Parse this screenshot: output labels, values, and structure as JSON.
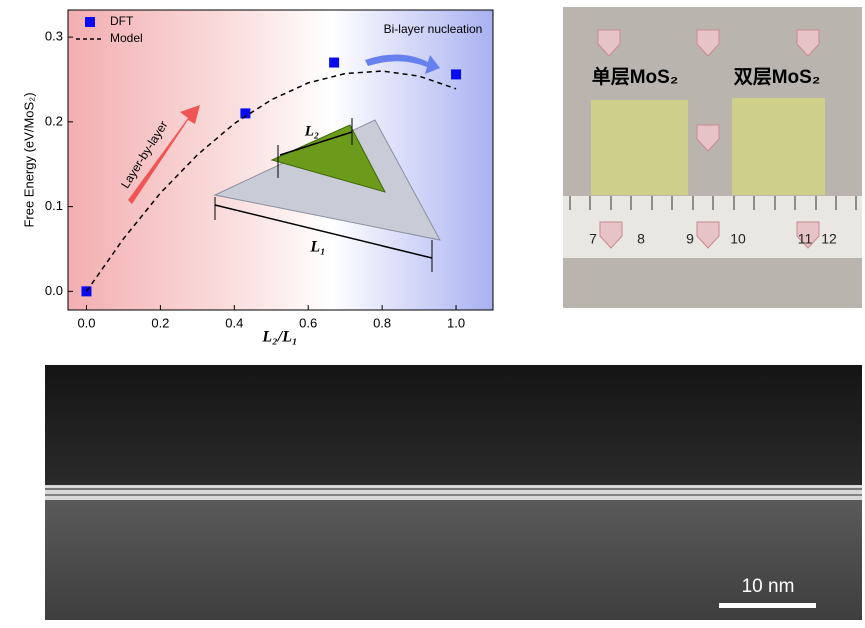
{
  "chart_data": {
    "type": "scatter",
    "xlabel": "L₂/L₁",
    "ylabel": "Free Energy (eV/MoS₂)",
    "xlim": [
      -0.05,
      1.1
    ],
    "ylim": [
      -0.022,
      0.332
    ],
    "xticks": [
      {
        "value": 0,
        "label": "0.0"
      },
      0.2,
      0.4,
      0.6,
      0.8,
      {
        "value": 1,
        "label": "1.0"
      }
    ],
    "yticks": [
      {
        "value": 0,
        "label": "0.0"
      },
      0.1,
      0.2,
      0.3
    ],
    "legend": "upper left",
    "series": [
      {
        "name": "DFT",
        "color": "#0a0af0",
        "marker": "square",
        "x": [
          0,
          0.43,
          0.67,
          1.0
        ],
        "values": [
          0,
          0.21,
          0.27,
          0.256
        ]
      },
      {
        "name": "Model",
        "color": "#000000",
        "line": "dashed",
        "x": [
          0,
          0.1,
          0.2,
          0.3,
          0.4,
          0.5,
          0.6,
          0.7,
          0.8,
          0.9,
          1.0
        ],
        "values": [
          0,
          0.062,
          0.116,
          0.161,
          0.198,
          0.226,
          0.246,
          0.257,
          0.26,
          0.254,
          0.239
        ]
      }
    ],
    "annotations": [
      "Layer-by-layer",
      "Bi-layer nucleation",
      "L₂",
      "L₁"
    ]
  },
  "photo": {
    "labels": [
      "单层MoS₂",
      "双层MoS₂"
    ],
    "ruler": [
      "7",
      "8",
      "9",
      "10",
      "11",
      "12"
    ]
  },
  "tem": {
    "scale_bar": "10 nm"
  }
}
